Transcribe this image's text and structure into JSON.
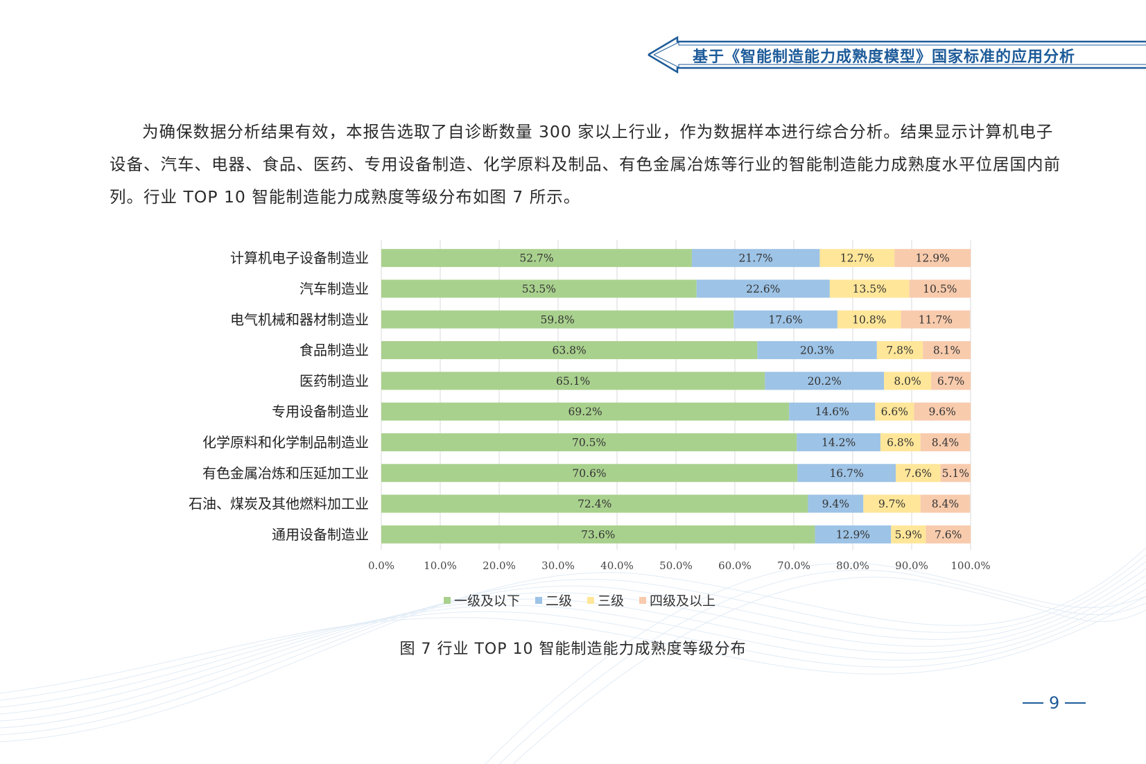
{
  "header": {
    "title": "基于《智能制造能力成熟度模型》国家标准的应用分析"
  },
  "body": {
    "paragraph": "为确保数据分析结果有效，本报告选取了自诊断数量 300 家以上行业，作为数据样本进行综合分析。结果显示计算机电子设备、汽车、电器、食品、医药、专用设备制造、化学原料及制品、有色金属冶炼等行业的智能制造能力成熟度水平位居国内前列。行业 TOP 10 智能制造能力成熟度等级分布如图 7 所示。"
  },
  "chart_data": {
    "type": "bar",
    "orientation": "horizontal",
    "stacked": true,
    "categories": [
      "计算机电子设备制造业",
      "汽车制造业",
      "电气机械和器材制造业",
      "食品制造业",
      "医药制造业",
      "专用设备制造业",
      "化学原料和化学制品制造业",
      "有色金属冶炼和压延加工业",
      "石油、煤炭及其他燃料加工业",
      "通用设备制造业"
    ],
    "series": [
      {
        "name": "一级及以下",
        "color": "#a9d18e",
        "values": [
          52.7,
          53.5,
          59.8,
          63.8,
          65.1,
          69.2,
          70.5,
          70.6,
          72.4,
          73.6
        ]
      },
      {
        "name": "二级",
        "color": "#9dc3e6",
        "values": [
          21.7,
          22.6,
          17.6,
          20.3,
          20.2,
          14.6,
          14.2,
          16.7,
          9.4,
          12.9
        ]
      },
      {
        "name": "三级",
        "color": "#ffe699",
        "values": [
          12.7,
          13.5,
          10.8,
          7.8,
          8.0,
          6.6,
          6.8,
          7.6,
          9.7,
          5.9
        ]
      },
      {
        "name": "四级及以上",
        "color": "#f8cbad",
        "values": [
          12.9,
          10.5,
          11.7,
          8.1,
          6.7,
          9.6,
          8.4,
          5.1,
          8.4,
          7.6
        ]
      }
    ],
    "xlim": [
      0,
      100
    ],
    "x_ticks": [
      "0.0%",
      "10.0%",
      "20.0%",
      "30.0%",
      "40.0%",
      "50.0%",
      "60.0%",
      "70.0%",
      "80.0%",
      "90.0%",
      "100.0%"
    ],
    "grid": true,
    "legend_position": "bottom",
    "caption": "图 7  行业 TOP 10 智能制造能力成熟度等级分布"
  },
  "footer": {
    "page_number": "9"
  }
}
